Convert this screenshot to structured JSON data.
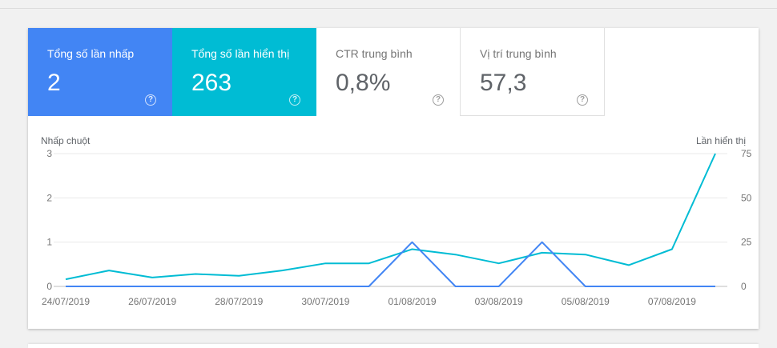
{
  "metrics": [
    {
      "label": "Tổng số lần nhấp",
      "value": "2",
      "help": "?"
    },
    {
      "label": "Tổng số lần hiển thị",
      "value": "263",
      "help": "?"
    },
    {
      "label": "CTR trung bình",
      "value": "0,8%",
      "help": "?"
    },
    {
      "label": "Vị trí trung bình",
      "value": "57,3",
      "help": "?"
    }
  ],
  "colors": {
    "clicks": "#4285f4",
    "impressions": "#00bcd4",
    "grid": "#e9e9e9"
  },
  "chart_data": {
    "type": "line",
    "ylabel": "Nhấp chuột",
    "y2label": "Lần hiển thị",
    "ylim": [
      0,
      3
    ],
    "y2lim": [
      0,
      75
    ],
    "yticks": [
      "0",
      "1",
      "2",
      "3"
    ],
    "y2ticks": [
      "0",
      "25",
      "50",
      "75"
    ],
    "x": [
      "24/07/2019",
      "25/07/2019",
      "26/07/2019",
      "27/07/2019",
      "28/07/2019",
      "29/07/2019",
      "30/07/2019",
      "31/07/2019",
      "01/08/2019",
      "02/08/2019",
      "03/08/2019",
      "04/08/2019",
      "05/08/2019",
      "06/08/2019",
      "07/08/2019",
      "08/08/2019"
    ],
    "xticks": [
      "24/07/2019",
      "26/07/2019",
      "28/07/2019",
      "30/07/2019",
      "01/08/2019",
      "03/08/2019",
      "05/08/2019",
      "07/08/2019"
    ],
    "series": [
      {
        "name": "Nhấp chuột",
        "axis": "left",
        "values": [
          0,
          0,
          0,
          0,
          0,
          0,
          0,
          0,
          1,
          0,
          0,
          1,
          0,
          0,
          0,
          0
        ]
      },
      {
        "name": "Lần hiển thị",
        "axis": "right",
        "values": [
          4,
          9,
          5,
          7,
          6,
          9,
          13,
          13,
          21,
          18,
          13,
          19,
          18,
          12,
          21,
          75
        ]
      }
    ],
    "grid": true
  }
}
